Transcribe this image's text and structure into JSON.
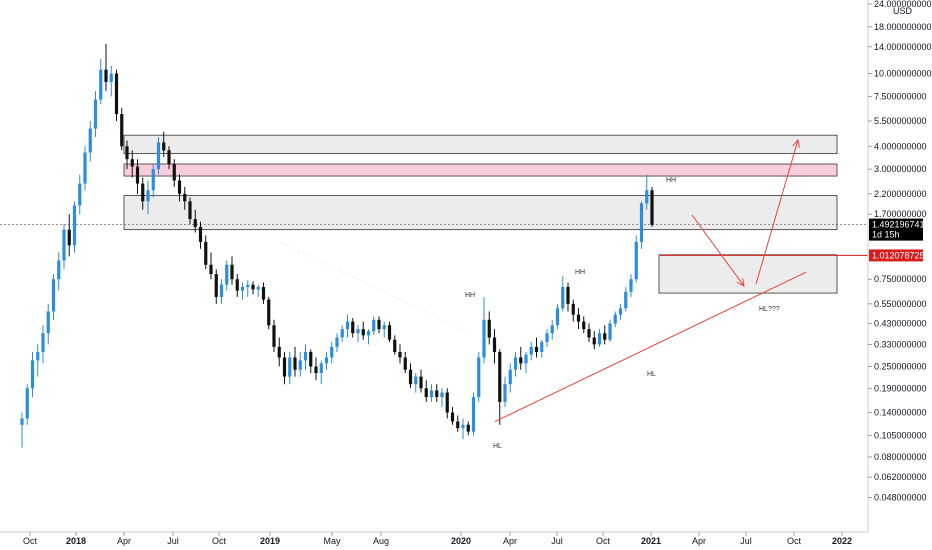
{
  "chart_data": {
    "type": "candlestick",
    "title": "",
    "currency": "USD",
    "y_scale": "log",
    "ylim": [
      0.04,
      24.0
    ],
    "y_ticks": [
      {
        "value": 24.0,
        "label": "24.000000000"
      },
      {
        "value": 18.0,
        "label": "18.000000000"
      },
      {
        "value": 14.0,
        "label": "14.000000000"
      },
      {
        "value": 10.0,
        "label": "10.000000000"
      },
      {
        "value": 7.5,
        "label": "7.500000000"
      },
      {
        "value": 5.5,
        "label": "5.500000000"
      },
      {
        "value": 4.0,
        "label": "4.000000000"
      },
      {
        "value": 3.0,
        "label": "3.000000000"
      },
      {
        "value": 2.2,
        "label": "2.200000000"
      },
      {
        "value": 1.7,
        "label": "1.700000000"
      },
      {
        "value": 0.75,
        "label": "0.750000000"
      },
      {
        "value": 0.55,
        "label": "0.550000000"
      },
      {
        "value": 0.43,
        "label": "0.430000000"
      },
      {
        "value": 0.33,
        "label": "0.330000000"
      },
      {
        "value": 0.25,
        "label": "0.250000000"
      },
      {
        "value": 0.19,
        "label": "0.190000000"
      },
      {
        "value": 0.14,
        "label": "0.140000000"
      },
      {
        "value": 0.105,
        "label": "0.105000000"
      },
      {
        "value": 0.08,
        "label": "0.080000000"
      },
      {
        "value": 0.062,
        "label": "0.062000000"
      },
      {
        "value": 0.048,
        "label": "0.048000000"
      }
    ],
    "x_ticks": [
      {
        "label": "Oct",
        "bold": false
      },
      {
        "label": "2018",
        "bold": true
      },
      {
        "label": "Apr",
        "bold": false
      },
      {
        "label": "Jul",
        "bold": false
      },
      {
        "label": "Oct",
        "bold": false
      },
      {
        "label": "2019",
        "bold": true
      },
      {
        "label": "May",
        "bold": false
      },
      {
        "label": "Aug",
        "bold": false
      },
      {
        "label": "2020",
        "bold": true
      },
      {
        "label": "Apr",
        "bold": false
      },
      {
        "label": "Jul",
        "bold": false
      },
      {
        "label": "Oct",
        "bold": false
      },
      {
        "label": "2021",
        "bold": true
      },
      {
        "label": "Apr",
        "bold": false
      },
      {
        "label": "Jul",
        "bold": false
      },
      {
        "label": "Oct",
        "bold": false
      },
      {
        "label": "2022",
        "bold": true
      }
    ],
    "candles": [
      {
        "o": 0.12,
        "h": 0.14,
        "l": 0.09,
        "c": 0.13
      },
      {
        "o": 0.13,
        "h": 0.2,
        "l": 0.12,
        "c": 0.19
      },
      {
        "o": 0.19,
        "h": 0.3,
        "l": 0.17,
        "c": 0.27
      },
      {
        "o": 0.27,
        "h": 0.33,
        "l": 0.22,
        "c": 0.3
      },
      {
        "o": 0.3,
        "h": 0.42,
        "l": 0.26,
        "c": 0.38
      },
      {
        "o": 0.38,
        "h": 0.55,
        "l": 0.33,
        "c": 0.5
      },
      {
        "o": 0.5,
        "h": 0.8,
        "l": 0.45,
        "c": 0.75
      },
      {
        "o": 0.75,
        "h": 1.05,
        "l": 0.65,
        "c": 0.95
      },
      {
        "o": 0.95,
        "h": 1.5,
        "l": 0.85,
        "c": 1.4
      },
      {
        "o": 1.4,
        "h": 1.7,
        "l": 1.0,
        "c": 1.15
      },
      {
        "o": 1.15,
        "h": 2.0,
        "l": 1.05,
        "c": 1.9
      },
      {
        "o": 1.9,
        "h": 2.8,
        "l": 1.7,
        "c": 2.5
      },
      {
        "o": 2.5,
        "h": 4.0,
        "l": 2.3,
        "c": 3.7
      },
      {
        "o": 3.7,
        "h": 5.5,
        "l": 3.3,
        "c": 5.0
      },
      {
        "o": 5.0,
        "h": 8.0,
        "l": 4.5,
        "c": 7.2
      },
      {
        "o": 7.2,
        "h": 12.0,
        "l": 6.8,
        "c": 10.5
      },
      {
        "o": 10.5,
        "h": 14.5,
        "l": 8.0,
        "c": 9.0
      },
      {
        "o": 9.0,
        "h": 11.0,
        "l": 7.5,
        "c": 10.0
      },
      {
        "o": 10.0,
        "h": 10.5,
        "l": 5.5,
        "c": 6.0
      },
      {
        "o": 6.0,
        "h": 6.5,
        "l": 3.8,
        "c": 4.0
      },
      {
        "o": 4.0,
        "h": 4.3,
        "l": 3.0,
        "c": 3.4
      },
      {
        "o": 3.4,
        "h": 3.8,
        "l": 2.7,
        "c": 3.1
      },
      {
        "o": 3.1,
        "h": 3.4,
        "l": 2.2,
        "c": 2.5
      },
      {
        "o": 2.5,
        "h": 2.7,
        "l": 1.8,
        "c": 2.0
      },
      {
        "o": 2.0,
        "h": 2.6,
        "l": 1.7,
        "c": 2.3
      },
      {
        "o": 2.3,
        "h": 3.2,
        "l": 2.1,
        "c": 3.0
      },
      {
        "o": 3.0,
        "h": 4.5,
        "l": 2.8,
        "c": 4.2
      },
      {
        "o": 4.2,
        "h": 4.8,
        "l": 3.5,
        "c": 3.8
      },
      {
        "o": 3.8,
        "h": 4.0,
        "l": 3.0,
        "c": 3.2
      },
      {
        "o": 3.2,
        "h": 3.4,
        "l": 2.4,
        "c": 2.6
      },
      {
        "o": 2.6,
        "h": 2.8,
        "l": 2.0,
        "c": 2.2
      },
      {
        "o": 2.2,
        "h": 2.4,
        "l": 1.8,
        "c": 2.0
      },
      {
        "o": 2.0,
        "h": 2.1,
        "l": 1.5,
        "c": 1.6
      },
      {
        "o": 1.6,
        "h": 1.8,
        "l": 1.35,
        "c": 1.45
      },
      {
        "o": 1.45,
        "h": 1.55,
        "l": 1.1,
        "c": 1.2
      },
      {
        "o": 1.2,
        "h": 1.3,
        "l": 0.85,
        "c": 0.9
      },
      {
        "o": 0.9,
        "h": 1.05,
        "l": 0.75,
        "c": 0.8
      },
      {
        "o": 0.8,
        "h": 0.85,
        "l": 0.55,
        "c": 0.6
      },
      {
        "o": 0.6,
        "h": 0.75,
        "l": 0.55,
        "c": 0.7
      },
      {
        "o": 0.7,
        "h": 0.95,
        "l": 0.65,
        "c": 0.9
      },
      {
        "o": 0.9,
        "h": 1.0,
        "l": 0.7,
        "c": 0.75
      },
      {
        "o": 0.75,
        "h": 0.8,
        "l": 0.6,
        "c": 0.65
      },
      {
        "o": 0.65,
        "h": 0.72,
        "l": 0.58,
        "c": 0.68
      },
      {
        "o": 0.68,
        "h": 0.74,
        "l": 0.6,
        "c": 0.7
      },
      {
        "o": 0.7,
        "h": 0.73,
        "l": 0.62,
        "c": 0.66
      },
      {
        "o": 0.66,
        "h": 0.7,
        "l": 0.6,
        "c": 0.68
      },
      {
        "o": 0.68,
        "h": 0.72,
        "l": 0.55,
        "c": 0.58
      },
      {
        "o": 0.58,
        "h": 0.6,
        "l": 0.4,
        "c": 0.42
      },
      {
        "o": 0.42,
        "h": 0.45,
        "l": 0.3,
        "c": 0.32
      },
      {
        "o": 0.32,
        "h": 0.36,
        "l": 0.25,
        "c": 0.28
      },
      {
        "o": 0.28,
        "h": 0.3,
        "l": 0.2,
        "c": 0.22
      },
      {
        "o": 0.22,
        "h": 0.3,
        "l": 0.2,
        "c": 0.28
      },
      {
        "o": 0.28,
        "h": 0.32,
        "l": 0.22,
        "c": 0.24
      },
      {
        "o": 0.24,
        "h": 0.3,
        "l": 0.22,
        "c": 0.27
      },
      {
        "o": 0.27,
        "h": 0.33,
        "l": 0.24,
        "c": 0.3
      },
      {
        "o": 0.3,
        "h": 0.31,
        "l": 0.23,
        "c": 0.25
      },
      {
        "o": 0.25,
        "h": 0.28,
        "l": 0.21,
        "c": 0.23
      },
      {
        "o": 0.23,
        "h": 0.27,
        "l": 0.2,
        "c": 0.26
      },
      {
        "o": 0.26,
        "h": 0.3,
        "l": 0.24,
        "c": 0.28
      },
      {
        "o": 0.28,
        "h": 0.34,
        "l": 0.26,
        "c": 0.32
      },
      {
        "o": 0.32,
        "h": 0.38,
        "l": 0.3,
        "c": 0.36
      },
      {
        "o": 0.36,
        "h": 0.42,
        "l": 0.34,
        "c": 0.4
      },
      {
        "o": 0.4,
        "h": 0.48,
        "l": 0.36,
        "c": 0.44
      },
      {
        "o": 0.44,
        "h": 0.46,
        "l": 0.36,
        "c": 0.38
      },
      {
        "o": 0.38,
        "h": 0.42,
        "l": 0.34,
        "c": 0.4
      },
      {
        "o": 0.4,
        "h": 0.44,
        "l": 0.35,
        "c": 0.37
      },
      {
        "o": 0.37,
        "h": 0.4,
        "l": 0.33,
        "c": 0.39
      },
      {
        "o": 0.39,
        "h": 0.47,
        "l": 0.37,
        "c": 0.45
      },
      {
        "o": 0.45,
        "h": 0.47,
        "l": 0.38,
        "c": 0.4
      },
      {
        "o": 0.4,
        "h": 0.44,
        "l": 0.36,
        "c": 0.42
      },
      {
        "o": 0.42,
        "h": 0.44,
        "l": 0.34,
        "c": 0.35
      },
      {
        "o": 0.35,
        "h": 0.37,
        "l": 0.29,
        "c": 0.3
      },
      {
        "o": 0.3,
        "h": 0.33,
        "l": 0.26,
        "c": 0.28
      },
      {
        "o": 0.28,
        "h": 0.3,
        "l": 0.23,
        "c": 0.24
      },
      {
        "o": 0.24,
        "h": 0.26,
        "l": 0.19,
        "c": 0.2
      },
      {
        "o": 0.2,
        "h": 0.23,
        "l": 0.18,
        "c": 0.22
      },
      {
        "o": 0.22,
        "h": 0.24,
        "l": 0.18,
        "c": 0.19
      },
      {
        "o": 0.19,
        "h": 0.21,
        "l": 0.16,
        "c": 0.17
      },
      {
        "o": 0.17,
        "h": 0.2,
        "l": 0.16,
        "c": 0.185
      },
      {
        "o": 0.185,
        "h": 0.2,
        "l": 0.16,
        "c": 0.17
      },
      {
        "o": 0.17,
        "h": 0.19,
        "l": 0.15,
        "c": 0.18
      },
      {
        "o": 0.18,
        "h": 0.19,
        "l": 0.13,
        "c": 0.14
      },
      {
        "o": 0.14,
        "h": 0.15,
        "l": 0.12,
        "c": 0.125
      },
      {
        "o": 0.125,
        "h": 0.135,
        "l": 0.11,
        "c": 0.115
      },
      {
        "o": 0.115,
        "h": 0.13,
        "l": 0.1,
        "c": 0.12
      },
      {
        "o": 0.12,
        "h": 0.125,
        "l": 0.105,
        "c": 0.11
      },
      {
        "o": 0.11,
        "h": 0.18,
        "l": 0.105,
        "c": 0.17
      },
      {
        "o": 0.17,
        "h": 0.3,
        "l": 0.16,
        "c": 0.28
      },
      {
        "o": 0.28,
        "h": 0.6,
        "l": 0.26,
        "c": 0.45
      },
      {
        "o": 0.45,
        "h": 0.5,
        "l": 0.33,
        "c": 0.36
      },
      {
        "o": 0.36,
        "h": 0.4,
        "l": 0.26,
        "c": 0.3
      },
      {
        "o": 0.3,
        "h": 0.31,
        "l": 0.12,
        "c": 0.16
      },
      {
        "o": 0.16,
        "h": 0.22,
        "l": 0.15,
        "c": 0.2
      },
      {
        "o": 0.2,
        "h": 0.26,
        "l": 0.18,
        "c": 0.24
      },
      {
        "o": 0.24,
        "h": 0.3,
        "l": 0.22,
        "c": 0.28
      },
      {
        "o": 0.28,
        "h": 0.32,
        "l": 0.24,
        "c": 0.26
      },
      {
        "o": 0.26,
        "h": 0.3,
        "l": 0.23,
        "c": 0.29
      },
      {
        "o": 0.29,
        "h": 0.34,
        "l": 0.27,
        "c": 0.32
      },
      {
        "o": 0.32,
        "h": 0.36,
        "l": 0.28,
        "c": 0.3
      },
      {
        "o": 0.3,
        "h": 0.35,
        "l": 0.28,
        "c": 0.34
      },
      {
        "o": 0.34,
        "h": 0.4,
        "l": 0.32,
        "c": 0.38
      },
      {
        "o": 0.38,
        "h": 0.45,
        "l": 0.35,
        "c": 0.42
      },
      {
        "o": 0.42,
        "h": 0.55,
        "l": 0.4,
        "c": 0.52
      },
      {
        "o": 0.52,
        "h": 0.78,
        "l": 0.5,
        "c": 0.68
      },
      {
        "o": 0.68,
        "h": 0.72,
        "l": 0.5,
        "c": 0.55
      },
      {
        "o": 0.55,
        "h": 0.58,
        "l": 0.44,
        "c": 0.48
      },
      {
        "o": 0.48,
        "h": 0.52,
        "l": 0.4,
        "c": 0.44
      },
      {
        "o": 0.44,
        "h": 0.47,
        "l": 0.38,
        "c": 0.4
      },
      {
        "o": 0.4,
        "h": 0.43,
        "l": 0.34,
        "c": 0.36
      },
      {
        "o": 0.36,
        "h": 0.39,
        "l": 0.31,
        "c": 0.33
      },
      {
        "o": 0.33,
        "h": 0.4,
        "l": 0.32,
        "c": 0.38
      },
      {
        "o": 0.38,
        "h": 0.42,
        "l": 0.33,
        "c": 0.35
      },
      {
        "o": 0.35,
        "h": 0.45,
        "l": 0.34,
        "c": 0.43
      },
      {
        "o": 0.43,
        "h": 0.5,
        "l": 0.41,
        "c": 0.48
      },
      {
        "o": 0.48,
        "h": 0.55,
        "l": 0.45,
        "c": 0.52
      },
      {
        "o": 0.52,
        "h": 0.68,
        "l": 0.5,
        "c": 0.64
      },
      {
        "o": 0.64,
        "h": 0.8,
        "l": 0.6,
        "c": 0.75
      },
      {
        "o": 0.75,
        "h": 1.3,
        "l": 0.72,
        "c": 1.2
      },
      {
        "o": 1.2,
        "h": 2.0,
        "l": 1.1,
        "c": 1.95
      },
      {
        "o": 1.95,
        "h": 2.8,
        "l": 1.8,
        "c": 2.3
      },
      {
        "o": 2.3,
        "h": 2.4,
        "l": 1.45,
        "c": 1.49
      }
    ],
    "zones": [
      {
        "top": 4.6,
        "bottom": 3.65,
        "style": "gray"
      },
      {
        "top": 3.2,
        "bottom": 2.75,
        "style": "pink"
      },
      {
        "top": 2.15,
        "bottom": 1.4,
        "style": "gray"
      },
      {
        "top": 1.02,
        "bottom": 0.63,
        "style": "gray"
      }
    ],
    "support_level": 1.012078725,
    "current_price": 1.492196741,
    "countdown": "1d 15h",
    "annotations": [
      {
        "text": "HH",
        "x": 0.2,
        "y": 0.63
      },
      {
        "text": "HH",
        "x": 0.57,
        "y": 0.68
      },
      {
        "text": "HH",
        "x": 0.69,
        "y": 2.9
      },
      {
        "text": "HL",
        "x": 0.0,
        "y": 0.1
      },
      {
        "text": "HL",
        "x": 0.63,
        "y": 0.26
      },
      {
        "text": "HL???",
        "x": 0.88,
        "y": 0.53
      }
    ],
    "labels": {
      "support_level": "1.012078725",
      "current_price": "1.492196741",
      "countdown": "1d 15h"
    },
    "colors": {
      "up": "#2a8ddf",
      "down": "#111111",
      "zone_gray": "#e6e6e6",
      "zone_pink": "#f9c8d6",
      "arrow": "#e4473a",
      "support_line": "#d91d1d",
      "current_tag": "#000000"
    }
  }
}
